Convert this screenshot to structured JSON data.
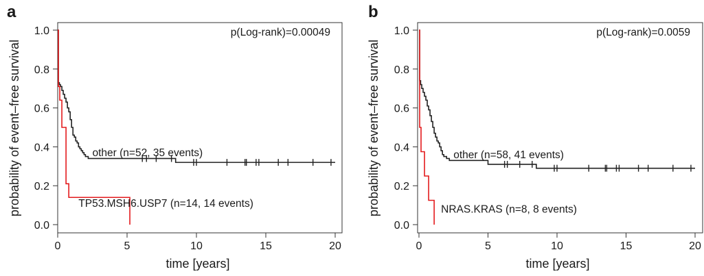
{
  "chart_data": [
    {
      "type": "line",
      "panel_label": "a",
      "xlabel": "time [years]",
      "ylabel": "probability of event–free survival",
      "xlim": [
        0,
        20
      ],
      "ylim": [
        0,
        1
      ],
      "xticks": [
        "0",
        "5",
        "10",
        "15",
        "20"
      ],
      "yticks": [
        "0.0",
        "0.2",
        "0.4",
        "0.6",
        "0.8",
        "1.0"
      ],
      "annotation": "p(Log-rank)=0.00049",
      "grid": false,
      "series": [
        {
          "name": "other (n=52, 35 events)",
          "color": "#222222",
          "x": [
            0,
            0.05,
            0.12,
            0.2,
            0.3,
            0.4,
            0.5,
            0.6,
            0.7,
            0.8,
            0.9,
            1.0,
            1.1,
            1.2,
            1.3,
            1.4,
            1.5,
            1.6,
            1.7,
            1.8,
            1.9,
            2.0,
            2.2,
            8.5,
            20.0
          ],
          "y": [
            1.0,
            0.73,
            0.72,
            0.71,
            0.69,
            0.67,
            0.65,
            0.63,
            0.6,
            0.58,
            0.54,
            0.5,
            0.46,
            0.45,
            0.43,
            0.42,
            0.4,
            0.39,
            0.38,
            0.37,
            0.36,
            0.35,
            0.34,
            0.32,
            0.32
          ],
          "censored_x": [
            6.1,
            6.4,
            7.1,
            8.2,
            9.8,
            10.0,
            12.2,
            13.5,
            13.6,
            14.3,
            14.5,
            15.9,
            16.6,
            18.4,
            19.7
          ],
          "label_at": [
            2.5,
            0.37
          ]
        },
        {
          "name": "TP53.MSH6.USP7 (n=14, 14 events)",
          "color": "#e31a1c",
          "x": [
            0,
            0.05,
            0.15,
            0.3,
            0.6,
            0.8,
            5.2
          ],
          "y": [
            1.0,
            0.71,
            0.64,
            0.5,
            0.21,
            0.14,
            0.07
          ],
          "end_x": 5.2,
          "end_y": 0.0,
          "label_at": [
            1.5,
            0.11
          ]
        }
      ]
    },
    {
      "type": "line",
      "panel_label": "b",
      "xlabel": "time [years]",
      "ylabel": "probability of event–free survival",
      "xlim": [
        0,
        20
      ],
      "ylim": [
        0,
        1
      ],
      "xticks": [
        "0",
        "5",
        "10",
        "15",
        "20"
      ],
      "yticks": [
        "0.0",
        "0.2",
        "0.4",
        "0.6",
        "0.8",
        "1.0"
      ],
      "annotation": "p(Log-rank)=0.0059",
      "grid": false,
      "series": [
        {
          "name": "other (n=58, 41 events)",
          "color": "#222222",
          "x": [
            0,
            0.05,
            0.12,
            0.2,
            0.3,
            0.4,
            0.5,
            0.6,
            0.7,
            0.8,
            0.9,
            1.0,
            1.1,
            1.2,
            1.3,
            1.4,
            1.5,
            1.6,
            1.7,
            1.8,
            2.0,
            2.2,
            5.0,
            8.5,
            20.0
          ],
          "y": [
            1.0,
            0.74,
            0.72,
            0.7,
            0.68,
            0.66,
            0.64,
            0.61,
            0.59,
            0.56,
            0.53,
            0.5,
            0.47,
            0.45,
            0.43,
            0.42,
            0.4,
            0.38,
            0.36,
            0.35,
            0.34,
            0.33,
            0.31,
            0.29,
            0.29
          ],
          "censored_x": [
            6.2,
            6.4,
            7.3,
            8.2,
            9.8,
            10.0,
            12.3,
            13.5,
            13.6,
            14.3,
            14.5,
            15.9,
            16.6,
            18.4,
            19.7
          ],
          "label_at": [
            2.5,
            0.36
          ]
        },
        {
          "name": "NRAS.KRAS (n=8, 8 events)",
          "color": "#e31a1c",
          "x": [
            0,
            0.05,
            0.15,
            0.4,
            0.7,
            1.1
          ],
          "y": [
            1.0,
            0.5,
            0.375,
            0.25,
            0.125,
            0.0
          ],
          "end_x": 1.1,
          "end_y": 0.0,
          "label_at": [
            1.6,
            0.08
          ]
        }
      ]
    }
  ]
}
